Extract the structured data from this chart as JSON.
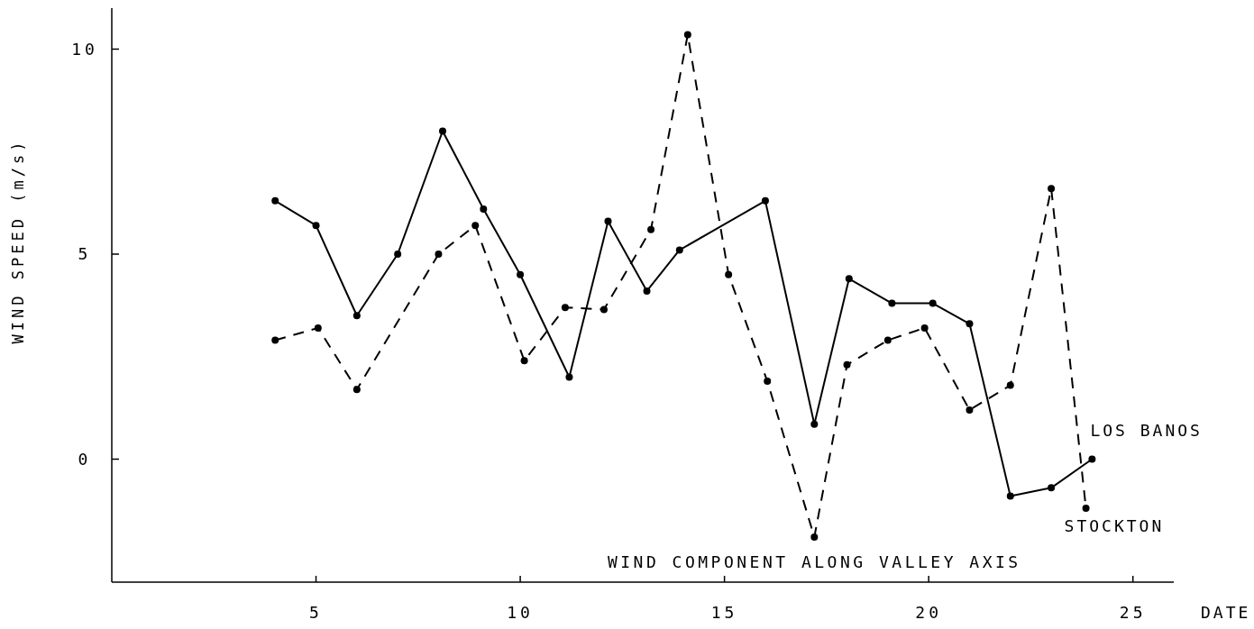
{
  "chart_data": {
    "type": "line",
    "xlabel": "DATE",
    "ylabel": "WIND SPEED (m/s)",
    "xlim": [
      0,
      26
    ],
    "ylim": [
      -3,
      11
    ],
    "xticks": [
      5,
      10,
      15,
      20,
      25
    ],
    "yticks": [
      0,
      5,
      10
    ],
    "grid": false,
    "marker": "circle",
    "annotations": [
      "WIND COMPONENT ALONG VALLEY AXIS"
    ],
    "series": [
      {
        "name": "LOS BANOS",
        "color": "#000000",
        "line_style": "solid",
        "x": [
          4,
          5,
          6,
          7,
          8.1,
          9.1,
          10,
          11.2,
          12.15,
          13.1,
          13.9,
          16,
          17.2,
          18.05,
          19.1,
          20.1,
          21,
          22,
          23,
          24
        ],
        "values": [
          6.3,
          5.7,
          3.5,
          5.0,
          8.0,
          6.1,
          4.5,
          2.0,
          5.8,
          4.1,
          5.1,
          6.3,
          0.85,
          4.4,
          3.8,
          3.8,
          3.3,
          -0.9,
          -0.7,
          0.0
        ]
      },
      {
        "name": "STOCKTON",
        "color": "#000000",
        "line_style": "dashed",
        "x": [
          4,
          5.05,
          6,
          8,
          8.9,
          10.1,
          11.1,
          12.05,
          13.2,
          14.1,
          15.1,
          16.05,
          17.2,
          18,
          19,
          19.9,
          21,
          22,
          23,
          23.85
        ],
        "values": [
          2.9,
          3.2,
          1.7,
          5.0,
          5.7,
          2.4,
          3.7,
          3.65,
          5.6,
          10.35,
          4.5,
          1.9,
          -1.9,
          2.3,
          2.9,
          3.2,
          1.2,
          1.8,
          6.6,
          -1.2
        ]
      }
    ]
  }
}
